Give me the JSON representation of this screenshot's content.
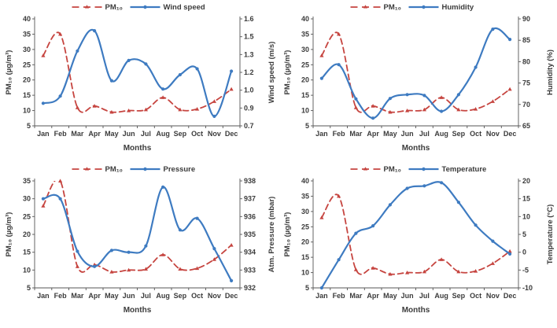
{
  "figure": {
    "background": "#ffffff"
  },
  "colors": {
    "pm10_red": "#c64540",
    "series_blue": "#3e7bc1",
    "axis": "#555555",
    "text": "#3b3b3b"
  },
  "chart_data": [
    {
      "type": "line",
      "name": "pm10-vs-wind-speed",
      "categories": [
        "Jan",
        "Feb",
        "Mar",
        "Apr",
        "May",
        "Jun",
        "Jul",
        "Aug",
        "Sep",
        "Oct",
        "Nov",
        "Dec"
      ],
      "xlabel": "Months",
      "legend_position": "top",
      "grid": false,
      "left_axis": {
        "label": "PM₁₀ (µg/m³)",
        "min": 5,
        "max": 40,
        "ticks": [
          40,
          35,
          30,
          25,
          20,
          15,
          10,
          5
        ]
      },
      "right_axis": {
        "label": "Wind speed (m/s)",
        "min": 0.7,
        "max": 1.6,
        "tick_values": [
          1.6,
          1.45,
          1.3,
          1.15,
          1.0,
          0.85,
          0.7
        ],
        "tick_labels": [
          "1.6",
          "1.5",
          "1.3",
          "1.2",
          "1.0",
          "0.9",
          "0.7"
        ]
      },
      "series": [
        {
          "key": "pm10",
          "name": "PM₁₀",
          "axis": "left",
          "color": "#c64540",
          "style": "dashed",
          "marker": "triangle",
          "values": [
            28,
            35,
            11,
            11.5,
            9.5,
            10,
            10.3,
            14.3,
            10.3,
            10.5,
            13,
            17
          ]
        },
        {
          "key": "wind-speed",
          "name": "Wind speed",
          "axis": "right",
          "color": "#3e7bc1",
          "style": "solid",
          "marker": "circle",
          "values": [
            0.89,
            0.95,
            1.33,
            1.5,
            1.08,
            1.25,
            1.22,
            1.01,
            1.13,
            1.18,
            0.78,
            1.16
          ]
        }
      ]
    },
    {
      "type": "line",
      "name": "pm10-vs-humidity",
      "categories": [
        "Jan",
        "Feb",
        "Mar",
        "Apr",
        "May",
        "Jun",
        "Jul",
        "Aug",
        "Sep",
        "Oct",
        "Nov",
        "Dec"
      ],
      "xlabel": "Months",
      "legend_position": "top",
      "grid": false,
      "left_axis": {
        "label": "PM₁₀ (µg/m³)",
        "min": 5,
        "max": 40,
        "ticks": [
          40,
          35,
          30,
          25,
          20,
          15,
          10,
          5
        ]
      },
      "right_axis": {
        "label": "Humidity (%)",
        "min": 65,
        "max": 90,
        "tick_values": [
          90,
          85,
          80,
          75,
          70,
          65
        ],
        "tick_labels": [
          "90",
          "85",
          "80",
          "75",
          "70",
          "65"
        ]
      },
      "series": [
        {
          "key": "pm10",
          "name": "PM₁₀",
          "axis": "left",
          "color": "#c64540",
          "style": "dashed",
          "marker": "triangle",
          "values": [
            28,
            35,
            11,
            11.5,
            9.5,
            10,
            10.3,
            14.3,
            10.3,
            10.5,
            13,
            17
          ]
        },
        {
          "key": "humidity",
          "name": "Humidity",
          "axis": "right",
          "color": "#3e7bc1",
          "style": "solid",
          "marker": "circle",
          "values": [
            76.1,
            79.3,
            71.3,
            66.8,
            71.4,
            72.3,
            72.1,
            68.4,
            72.3,
            78.7,
            87.6,
            85.2
          ]
        }
      ]
    },
    {
      "type": "line",
      "name": "pm10-vs-pressure",
      "categories": [
        "Jan",
        "Feb",
        "Mar",
        "Apr",
        "May",
        "Jun",
        "Jul",
        "Aug",
        "Sep",
        "Oct",
        "Nov",
        "Dec"
      ],
      "xlabel": "Months",
      "legend_position": "top",
      "grid": false,
      "left_axis": {
        "label": "PM₁₀ (µg/m³)",
        "min": 5,
        "max": 35,
        "ticks": [
          35,
          30,
          25,
          20,
          15,
          10,
          5
        ]
      },
      "right_axis": {
        "label": "Atm. Pressure (mbar)",
        "min": 932,
        "max": 938,
        "tick_values": [
          938,
          937,
          936,
          935,
          934,
          933,
          932
        ],
        "tick_labels": [
          "938",
          "937",
          "936",
          "935",
          "934",
          "933",
          "932"
        ]
      },
      "series": [
        {
          "key": "pm10",
          "name": "PM₁₀",
          "axis": "left",
          "color": "#c64540",
          "style": "dashed",
          "marker": "triangle",
          "values": [
            28,
            35,
            11,
            11.5,
            9.5,
            10,
            10.3,
            14.3,
            10.3,
            10.5,
            13,
            17
          ]
        },
        {
          "key": "pressure",
          "name": "Pressure",
          "axis": "right",
          "color": "#3e7bc1",
          "style": "solid",
          "marker": "circle",
          "values": [
            937.0,
            937.0,
            934.05,
            933.2,
            934.1,
            934.0,
            934.35,
            937.65,
            935.25,
            935.9,
            934.2,
            932.4
          ]
        }
      ]
    },
    {
      "type": "line",
      "name": "pm10-vs-temperature",
      "categories": [
        "Jan",
        "Feb",
        "Mar",
        "Apr",
        "May",
        "Jun",
        "Jul",
        "Aug",
        "Sep",
        "Oct",
        "Nov",
        "Dec"
      ],
      "xlabel": "Months",
      "legend_position": "top",
      "grid": false,
      "left_axis": {
        "label": "PM₁₀ (µg/m³)",
        "min": 5,
        "max": 40,
        "ticks": [
          40,
          35,
          30,
          25,
          20,
          15,
          10,
          5
        ]
      },
      "right_axis": {
        "label": "Temperature (°C)",
        "min": -10,
        "max": 20,
        "tick_values": [
          20,
          15,
          10,
          5,
          0,
          -5,
          -10
        ],
        "tick_labels": [
          "20",
          "15",
          "10",
          "5",
          "0",
          "-5",
          "-10"
        ]
      },
      "series": [
        {
          "key": "pm10",
          "name": "PM₁₀",
          "axis": "left",
          "color": "#c64540",
          "style": "dashed",
          "marker": "triangle",
          "values": [
            28,
            35,
            11,
            11.5,
            9.5,
            10,
            10.3,
            14.3,
            10.3,
            10.5,
            13,
            17
          ]
        },
        {
          "key": "temperature",
          "name": "Temperature",
          "axis": "right",
          "color": "#3e7bc1",
          "style": "solid",
          "marker": "circle",
          "values": [
            -10,
            -2.1,
            5.3,
            7.4,
            13.3,
            17.9,
            18.6,
            19.5,
            14.0,
            7.6,
            3.1,
            -0.5
          ]
        }
      ]
    }
  ]
}
